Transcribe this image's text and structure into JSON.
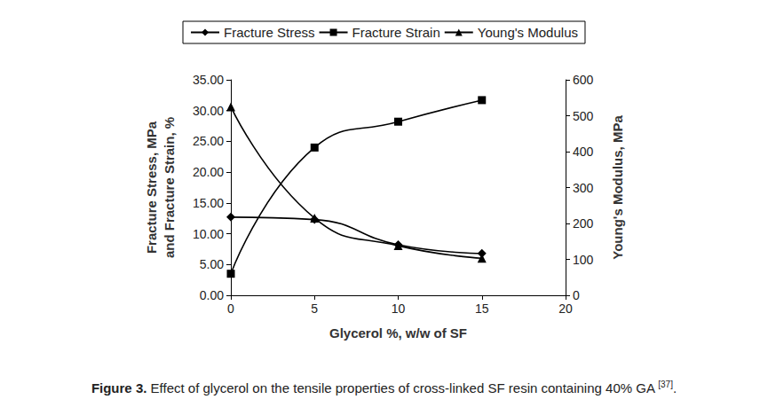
{
  "chart_data": {
    "type": "line",
    "x_label": "Glycerol %, w/w of SF",
    "y_label": "Fracture Stress, MPa\nand Fracture Strain, %",
    "y2_label": "Young's Modulus, MPa",
    "x": [
      0,
      5,
      10,
      15
    ],
    "xlim": [
      0,
      20
    ],
    "xticks": [
      0,
      5,
      10,
      15,
      20
    ],
    "ylim": [
      0,
      35
    ],
    "yticks": [
      {
        "value": 0,
        "label": "0.00"
      },
      {
        "value": 5,
        "label": "5.00"
      },
      {
        "value": 10,
        "label": "10.00"
      },
      {
        "value": 15,
        "label": "15.00"
      },
      {
        "value": 20,
        "label": "20.00"
      },
      {
        "value": 25,
        "label": "25.00"
      },
      {
        "value": 30,
        "label": "30.00"
      },
      {
        "value": 35,
        "label": "35.00"
      }
    ],
    "y2lim": [
      0,
      600
    ],
    "y2ticks": [
      0,
      100,
      200,
      300,
      400,
      500,
      600
    ],
    "grid": false,
    "legend": "top",
    "series": [
      {
        "name": "Fracture Stress",
        "color": "#000000",
        "marker": "diamond",
        "values": [
          12.7,
          12.3,
          8.2,
          6.8
        ]
      },
      {
        "name": "Fracture Strain",
        "color": "#000000",
        "marker": "square",
        "values": [
          3.5,
          24.0,
          28.2,
          31.7
        ]
      },
      {
        "name": "Young's Modulus",
        "color": "#000000",
        "marker": "triangle",
        "axis": "y2",
        "values": [
          525,
          215,
          138,
          103
        ]
      }
    ],
    "caption": {
      "label": "Figure 3.",
      "text": "Effect of glycerol on the tensile properties of cross-linked SF resin containing 40% GA",
      "ref": "[37]"
    }
  }
}
